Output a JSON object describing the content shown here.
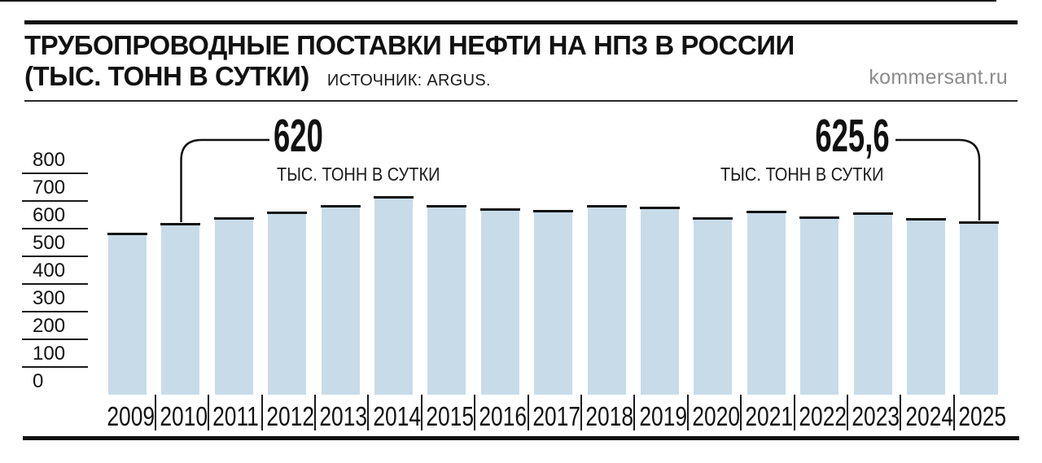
{
  "header": {
    "title_line1": "ТРУБОПРОВОДНЫЕ ПОСТАВКИ НЕФТИ НА НПЗ В РОССИИ",
    "title_line2": "(ТЫС. ТОНН В СУТКИ)",
    "source": "ИСТОЧНИК: ARGUS.",
    "site": "kommersant.ru"
  },
  "chart_data": {
    "type": "bar",
    "title": "ТРУБОПРОВОДНЫЕ ПОСТАВКИ НЕФТИ НА НПЗ В РОССИИ (ТЫС. ТОНН В СУТКИ)",
    "source": "ИСТОЧНИК: ARGUS.",
    "categories": [
      "2009",
      "2010",
      "2011",
      "2012",
      "2013",
      "2014",
      "2015",
      "2016",
      "2017",
      "2018",
      "2019",
      "2020",
      "2021",
      "2022",
      "2023",
      "2024",
      "2025"
    ],
    "values": [
      585,
      620,
      641,
      661,
      686,
      717,
      686,
      674,
      668,
      684,
      678,
      640,
      666,
      644,
      658,
      638,
      625.6
    ],
    "xlabel": "",
    "ylabel": "",
    "ylim": [
      0,
      800
    ],
    "yticks": [
      0,
      100,
      200,
      300,
      400,
      500,
      600,
      700,
      800
    ],
    "grid": "short-left-ticks",
    "legend": "none",
    "bar_color": "#c8dbe9",
    "cap_color": "#111111",
    "annotations": [
      {
        "category": "2010",
        "value": 620,
        "label": "620",
        "unit": "ТЫС. ТОНН В СУТКИ"
      },
      {
        "category": "2025",
        "value": 625.6,
        "label": "625,6",
        "unit": "ТЫС. ТОНН В СУТКИ"
      }
    ]
  }
}
